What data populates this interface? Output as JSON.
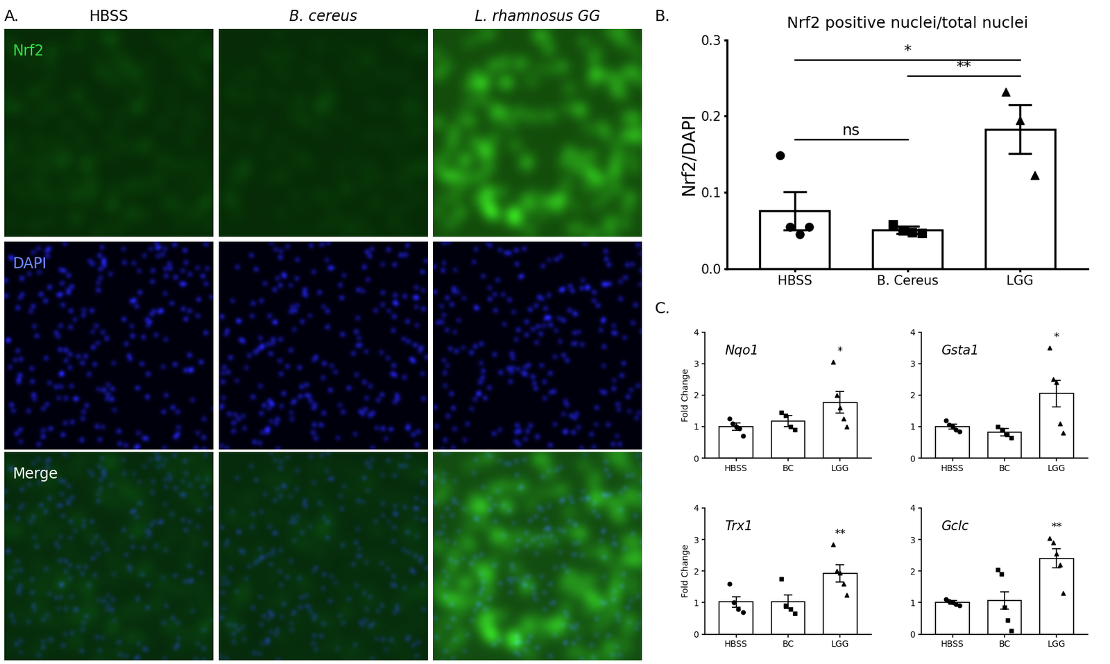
{
  "image_panel": {
    "label": "A.",
    "columns": [
      "HBSS",
      "B. cereus",
      "L. rhamnosus GG"
    ],
    "rows": [
      "Nrf2",
      "DAPI",
      "Merge"
    ]
  },
  "chart_data": [
    {
      "type": "bar",
      "panel_label": "B.",
      "title": "Nrf2 positive nuclei/total nuclei",
      "y_label": "Nrf2/DAPI",
      "categories": [
        "HBSS",
        "B. Cereus",
        "LGG"
      ],
      "values": [
        0.076,
        0.051,
        0.183
      ],
      "errors": [
        0.025,
        0.005,
        0.032
      ],
      "points": [
        {
          "marker": "circle",
          "values": [
            0.149,
            0.055,
            0.045,
            0.055
          ]
        },
        {
          "marker": "square",
          "values": [
            0.058,
            0.05,
            0.048,
            0.047
          ]
        },
        {
          "marker": "triangle",
          "values": [
            0.232,
            0.195,
            0.123
          ]
        }
      ],
      "comparisons": [
        {
          "from": "HBSS",
          "to": "B. Cereus",
          "label": "ns"
        },
        {
          "from": "B. Cereus",
          "to": "LGG",
          "label": "**"
        },
        {
          "from": "HBSS",
          "to": "LGG",
          "label": "*"
        }
      ],
      "ylim": [
        0.0,
        0.3
      ],
      "yticks": [
        0.0,
        0.1,
        0.2,
        0.3
      ]
    },
    {
      "type": "bar",
      "panel_label": "C.",
      "title": "Nqo1",
      "y_label": "Fold Change",
      "categories": [
        "HBSS",
        "BC",
        "LGG"
      ],
      "values": [
        1.0,
        1.18,
        1.77
      ],
      "errors": [
        0.12,
        0.18,
        0.35
      ],
      "points": [
        {
          "marker": "circle",
          "values": [
            1.25,
            1.1,
            1.0,
            0.95,
            0.7
          ]
        },
        {
          "marker": "square",
          "values": [
            1.45,
            1.35,
            1.0,
            0.9
          ]
        },
        {
          "marker": "triangle",
          "values": [
            3.05,
            2.0,
            1.6,
            1.25,
            1.0
          ]
        }
      ],
      "significance": [
        null,
        null,
        "*"
      ],
      "ylim": [
        0,
        4
      ],
      "yticks": [
        0,
        1,
        2,
        3,
        4
      ]
    },
    {
      "type": "bar",
      "title": "Gsta1",
      "categories": [
        "HBSS",
        "BC",
        "LGG"
      ],
      "values": [
        1.0,
        0.83,
        2.05
      ],
      "errors": [
        0.08,
        0.12,
        0.42
      ],
      "points": [
        {
          "marker": "circle",
          "values": [
            1.2,
            1.05,
            1.0,
            0.9,
            0.85
          ]
        },
        {
          "marker": "square",
          "values": [
            1.0,
            0.9,
            0.75,
            0.65
          ]
        },
        {
          "marker": "triangle",
          "values": [
            3.5,
            2.5,
            2.4,
            1.1,
            0.8
          ]
        }
      ],
      "significance": [
        null,
        null,
        "*"
      ],
      "ylim": [
        0,
        4
      ],
      "yticks": [
        0,
        1,
        2,
        3,
        4
      ]
    },
    {
      "type": "bar",
      "title": "Trx1",
      "y_label": "Fold Change",
      "categories": [
        "HBSS",
        "BC",
        "LGG"
      ],
      "values": [
        1.02,
        1.03,
        1.93
      ],
      "errors": [
        0.17,
        0.22,
        0.27
      ],
      "points": [
        {
          "marker": "circle",
          "values": [
            1.6,
            1.0,
            0.8,
            0.7
          ]
        },
        {
          "marker": "square",
          "values": [
            1.75,
            0.9,
            0.8,
            0.65
          ]
        },
        {
          "marker": "triangle",
          "values": [
            2.85,
            2.0,
            1.95,
            1.6,
            1.25
          ]
        }
      ],
      "significance": [
        null,
        null,
        "**"
      ],
      "ylim": [
        0,
        4
      ],
      "yticks": [
        0,
        1,
        2,
        3,
        4
      ]
    },
    {
      "type": "bar",
      "title": "Gclc",
      "categories": [
        "HBSS",
        "BC",
        "LGG"
      ],
      "values": [
        1.0,
        1.07,
        2.4
      ],
      "errors": [
        0.06,
        0.27,
        0.3
      ],
      "points": [
        {
          "marker": "circle",
          "values": [
            1.1,
            1.05,
            1.0,
            0.95,
            0.9
          ]
        },
        {
          "marker": "square",
          "values": [
            2.05,
            1.9,
            0.85,
            0.45,
            0.1
          ]
        },
        {
          "marker": "triangle",
          "values": [
            3.05,
            2.9,
            2.55,
            2.2,
            1.3
          ]
        }
      ],
      "significance": [
        null,
        null,
        "**"
      ],
      "ylim": [
        0,
        4
      ],
      "yticks": [
        0,
        1,
        2,
        3,
        4
      ]
    }
  ]
}
